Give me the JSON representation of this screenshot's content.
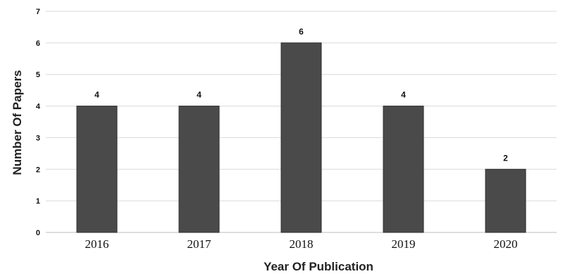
{
  "chart_data": {
    "type": "bar",
    "categories": [
      "2016",
      "2017",
      "2018",
      "2019",
      "2020"
    ],
    "values": [
      4,
      4,
      6,
      4,
      2
    ],
    "data_labels": [
      "4",
      "4",
      "6",
      "4",
      "2"
    ],
    "xlabel": "Year Of Publication",
    "ylabel": "Number Of Papers",
    "ylim": [
      0,
      7
    ],
    "yticks": [
      "0",
      "1",
      "2",
      "3",
      "4",
      "5",
      "6",
      "7"
    ],
    "grid": true,
    "bar_color": "#4a4a4a",
    "grid_color": "#d9d9d9"
  }
}
